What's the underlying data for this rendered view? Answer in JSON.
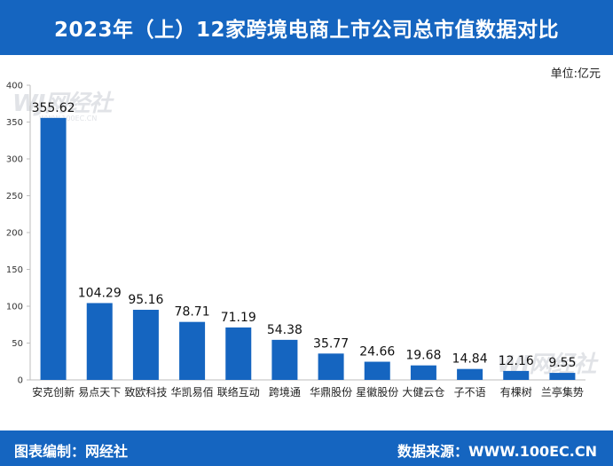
{
  "header": {
    "title": "2023年（上）12家跨境电商上市公司总市值数据对比"
  },
  "unit_label": "单位:亿元",
  "footer": {
    "left": "图表编制：网经社",
    "right": "数据来源：WWW.100EC.CN"
  },
  "watermark": {
    "mark": "WJ网经社",
    "url": "WWW.100EC.CN"
  },
  "chart_data": {
    "type": "bar",
    "categories": [
      "安克创新",
      "易点天下",
      "致欧科技",
      "华凯易佰",
      "联络互动",
      "跨境通",
      "华鼎股份",
      "星徽股份",
      "大健云仓",
      "子不语",
      "有棵树",
      "兰亭集势"
    ],
    "values": [
      355.62,
      104.29,
      95.16,
      78.71,
      71.19,
      54.38,
      35.77,
      24.66,
      19.68,
      14.84,
      12.16,
      9.55
    ],
    "value_labels": [
      "355.62",
      "104.29",
      "95.16",
      "78.71",
      "71.19",
      "54.38",
      "35.77",
      "24.66",
      "19.68",
      "14.84",
      "12.16",
      "9.55"
    ],
    "yticks": [
      0,
      50,
      100,
      150,
      200,
      250,
      300,
      350,
      400
    ],
    "ylim": [
      0,
      400
    ],
    "grid": false,
    "legend": "none",
    "bar_color": "#1565c0",
    "ylabel": "单位:亿元"
  }
}
